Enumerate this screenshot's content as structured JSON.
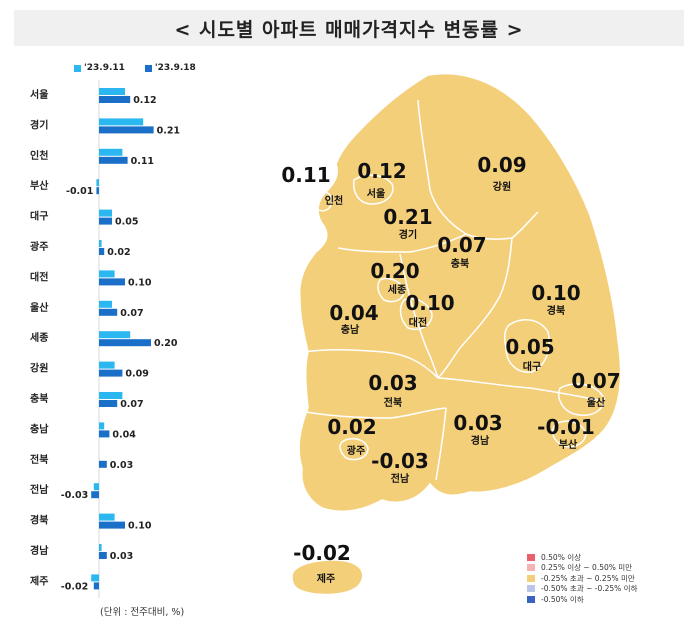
{
  "title": "< 시도별 아파트 매매가격지수 변동률 >",
  "unit_note": "(단위 : 전주대비, %)",
  "colors": {
    "week1": "#2bb8f0",
    "week2": "#1a6fc8",
    "map_fill": "#f4cf7a",
    "map_stroke": "#ffffff"
  },
  "chart_data": {
    "type": "bar",
    "orientation": "horizontal",
    "categories": [
      "서울",
      "경기",
      "인천",
      "부산",
      "대구",
      "광주",
      "대전",
      "울산",
      "세종",
      "강원",
      "충북",
      "충남",
      "전북",
      "전남",
      "경북",
      "경남",
      "제주"
    ],
    "series": [
      {
        "name": "'23.9.11",
        "values": [
          0.1,
          0.17,
          0.09,
          -0.01,
          0.05,
          0.01,
          0.06,
          0.05,
          0.12,
          0.06,
          0.09,
          0.02,
          0.0,
          -0.02,
          0.06,
          0.01,
          -0.03
        ]
      },
      {
        "name": "'23.9.18",
        "values": [
          0.12,
          0.21,
          0.11,
          -0.01,
          0.05,
          0.02,
          0.1,
          0.07,
          0.2,
          0.09,
          0.07,
          0.04,
          0.03,
          -0.03,
          0.1,
          0.03,
          -0.02
        ]
      }
    ],
    "labels": [
      "0.12",
      "0.21",
      "0.11",
      "-0.01",
      "0.05",
      "0.02",
      "0.10",
      "0.07",
      "0.20",
      "0.09",
      "0.07",
      "0.04",
      "0.03",
      "-0.03",
      "0.10",
      "0.03",
      "-0.02"
    ]
  },
  "map": {
    "regions": [
      {
        "name": "인천",
        "value": "0.11"
      },
      {
        "name": "서울",
        "value": "0.12"
      },
      {
        "name": "강원",
        "value": "0.09"
      },
      {
        "name": "경기",
        "value": "0.21"
      },
      {
        "name": "충북",
        "value": "0.07"
      },
      {
        "name": "세종",
        "value": "0.20"
      },
      {
        "name": "충남",
        "value": "0.04"
      },
      {
        "name": "대전",
        "value": "0.10"
      },
      {
        "name": "경북",
        "value": "0.10"
      },
      {
        "name": "대구",
        "value": "0.05"
      },
      {
        "name": "울산",
        "value": "0.07"
      },
      {
        "name": "전북",
        "value": "0.03"
      },
      {
        "name": "광주",
        "value": "0.02"
      },
      {
        "name": "경남",
        "value": "0.03"
      },
      {
        "name": "부산",
        "value": "-0.01"
      },
      {
        "name": "전남",
        "value": "-0.03"
      },
      {
        "name": "제주",
        "value": "-0.02"
      }
    ],
    "legend": [
      {
        "label": "0.50% 이상",
        "color": "#e8606a"
      },
      {
        "label": "0.25% 이상 ~ 0.50% 미만",
        "color": "#f5b3b3"
      },
      {
        "label": "-0.25% 초과 ~ 0.25% 미만",
        "color": "#f4cf7a"
      },
      {
        "label": "-0.50% 초과 ~ -0.25% 이하",
        "color": "#b7c6ea"
      },
      {
        "label": "-0.50% 이하",
        "color": "#3a62c0"
      }
    ]
  }
}
